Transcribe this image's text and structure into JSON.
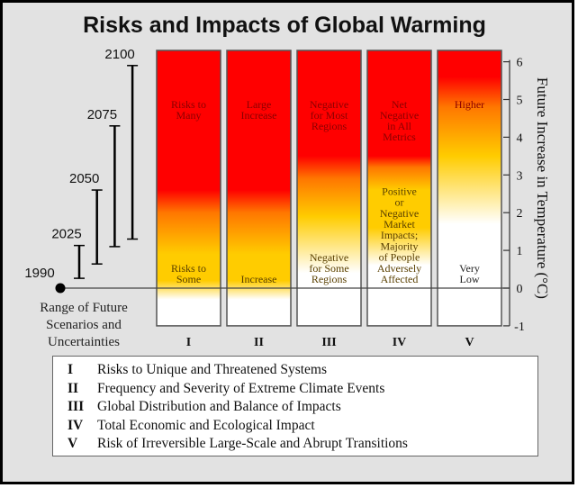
{
  "title": "Risks and Impacts of Global Warming",
  "chart_data": {
    "type": "heatmap",
    "title": "Risks and Impacts of Global Warming",
    "ylabel": "Future Increase in Temperature (°C)",
    "ylim": [
      -1,
      6
    ],
    "yticks": [
      "-1",
      "0",
      "1",
      "2",
      "3",
      "4",
      "5",
      "6"
    ],
    "colors": {
      "white": "#ffffff",
      "yellow": "#ffcc00",
      "orange": "#ff7700",
      "red": "#ff0000"
    },
    "columns": [
      {
        "numeral": "I",
        "top_label": "Risks to Many",
        "bottom_label": "Risks to Some",
        "stops": [
          [
            -1,
            "white"
          ],
          [
            -0.3,
            "white"
          ],
          [
            0.2,
            "yellow"
          ],
          [
            0.9,
            "yellow"
          ],
          [
            2.0,
            "orange"
          ],
          [
            2.6,
            "red"
          ],
          [
            6.2,
            "red"
          ]
        ]
      },
      {
        "numeral": "II",
        "top_label": "Large Increase",
        "bottom_label": "Increase",
        "stops": [
          [
            -1,
            "white"
          ],
          [
            -0.3,
            "white"
          ],
          [
            0.2,
            "yellow"
          ],
          [
            0.9,
            "yellow"
          ],
          [
            2.0,
            "orange"
          ],
          [
            2.6,
            "red"
          ],
          [
            6.2,
            "red"
          ]
        ]
      },
      {
        "numeral": "III",
        "top_label": "Negative for Most Regions",
        "bottom_label": "Negative for Some Regions",
        "stops": [
          [
            -1,
            "white"
          ],
          [
            0.4,
            "white"
          ],
          [
            1.9,
            "yellow"
          ],
          [
            2.9,
            "orange"
          ],
          [
            3.5,
            "red"
          ],
          [
            6.2,
            "red"
          ]
        ]
      },
      {
        "numeral": "IV",
        "top_label": "Net Negative in All Metrics",
        "bottom_label": "Positive or Negative Market Impacts; Majority of People Adversely Affected",
        "stops": [
          [
            -1,
            "white"
          ],
          [
            0.6,
            "white"
          ],
          [
            1.6,
            "yellow"
          ],
          [
            2.6,
            "yellow"
          ],
          [
            3.2,
            "orange"
          ],
          [
            3.5,
            "red"
          ],
          [
            6.2,
            "red"
          ]
        ]
      },
      {
        "numeral": "V",
        "top_label": "Higher",
        "bottom_label": "Very Low",
        "stops": [
          [
            -1,
            "white"
          ],
          [
            1.7,
            "white"
          ],
          [
            3.5,
            "yellow"
          ],
          [
            4.8,
            "orange"
          ],
          [
            5.6,
            "red"
          ],
          [
            6.2,
            "red"
          ]
        ]
      }
    ],
    "scenarios": {
      "caption": "Range of Future Scenarios and Uncertainties",
      "baseline": {
        "year": "1990",
        "value": 0
      },
      "ranges": [
        {
          "year": "2025",
          "low": 0.26,
          "high": 1.13
        },
        {
          "year": "2050",
          "low": 0.64,
          "high": 2.6
        },
        {
          "year": "2075",
          "low": 1.1,
          "high": 4.3
        },
        {
          "year": "2100",
          "low": 1.3,
          "high": 5.9
        }
      ]
    }
  },
  "legend": [
    {
      "numeral": "I",
      "text": "Risks to Unique and Threatened Systems"
    },
    {
      "numeral": "II",
      "text": "Frequency and Severity of Extreme Climate Events"
    },
    {
      "numeral": "III",
      "text": "Global Distribution and Balance of Impacts"
    },
    {
      "numeral": "IV",
      "text": "Total Economic and Ecological Impact"
    },
    {
      "numeral": "V",
      "text": "Risk of Irreversible Large-Scale and Abrupt Transitions"
    }
  ]
}
